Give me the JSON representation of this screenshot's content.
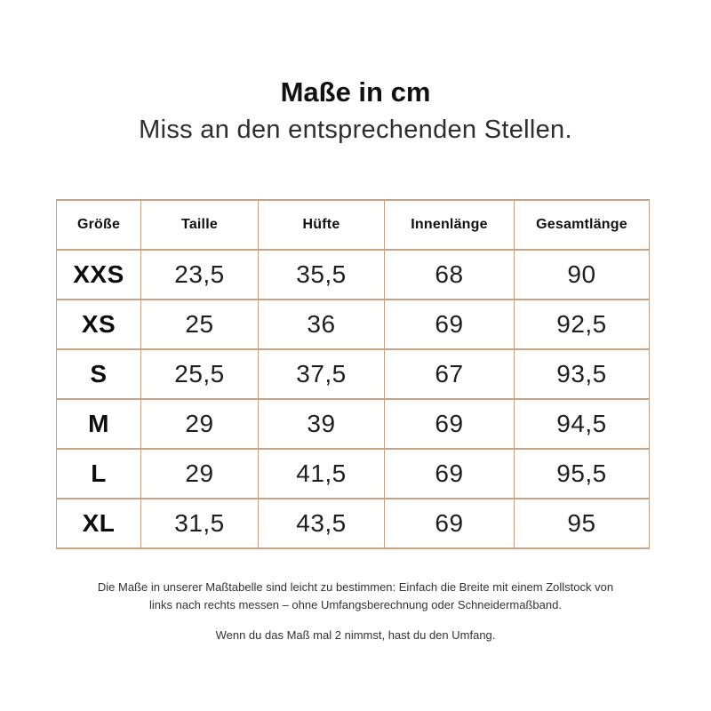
{
  "accent_color": "#c9a183",
  "header": {
    "title": "Maße in cm",
    "subtitle": "Miss an den entsprechenden Stellen."
  },
  "chart_data": {
    "type": "table",
    "title": "Maße in cm",
    "subtitle": "Miss an den entsprechenden Stellen.",
    "unit": "cm",
    "columns": [
      "Größe",
      "Taille",
      "Hüfte",
      "Innenlänge",
      "Gesamtlänge"
    ],
    "rows": [
      [
        "XXS",
        "23,5",
        "35,5",
        "68",
        "90"
      ],
      [
        "XS",
        "25",
        "36",
        "69",
        "92,5"
      ],
      [
        "S",
        "25,5",
        "37,5",
        "67",
        "93,5"
      ],
      [
        "M",
        "29",
        "39",
        "69",
        "94,5"
      ],
      [
        "L",
        "29",
        "41,5",
        "69",
        "95,5"
      ],
      [
        "XL",
        "31,5",
        "43,5",
        "69",
        "95"
      ]
    ]
  },
  "footer": {
    "note1": "Die Maße in unserer Maßtabelle sind leicht zu bestimmen: Einfach die Breite mit einem Zollstock von links nach rechts messen – ohne Umfangsberechnung oder Schneidermaßband.",
    "note2": "Wenn du das Maß mal 2 nimmst, hast du den Umfang."
  }
}
